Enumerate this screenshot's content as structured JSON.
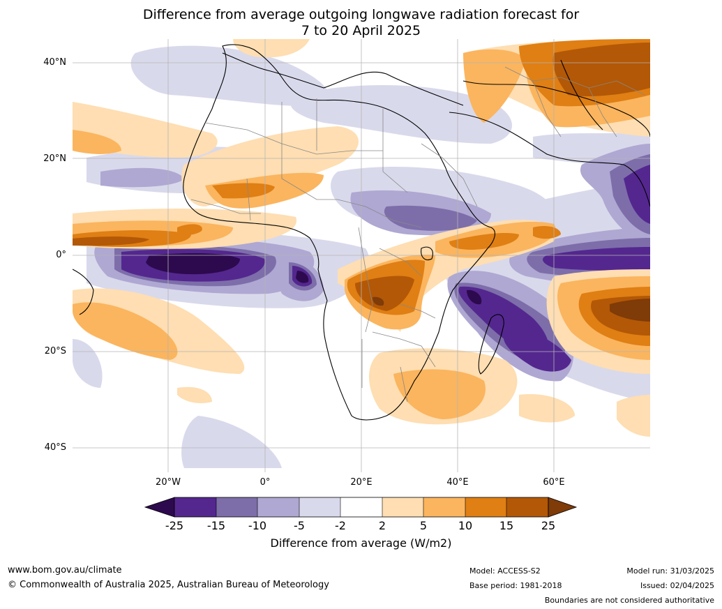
{
  "title_line1": "Difference from average outgoing longwave radiation forecast for",
  "title_line2": "7 to 20 April 2025",
  "lat_labels": [
    "40°N",
    "20°N",
    "0°",
    "20°S",
    "40°S"
  ],
  "lon_labels": [
    "20°W",
    "0°",
    "20°E",
    "40°E",
    "60°E"
  ],
  "colorbar": {
    "ticks": [
      "-25",
      "-15",
      "-10",
      "-5",
      "-2",
      "2",
      "5",
      "10",
      "15",
      "25"
    ],
    "colors": [
      "#2d0a4e",
      "#54278f",
      "#7d6eaa",
      "#afa8d2",
      "#d9d9ec",
      "#ffffff",
      "#fedeb2",
      "#fbb55e",
      "#df7f14",
      "#b35806",
      "#7f3b08"
    ],
    "label": "Difference from average (W/m2)"
  },
  "footer": {
    "url": "www.bom.gov.au/climate",
    "copyright": "© Commonwealth of Australia 2025, Australian Bureau of Meteorology",
    "model": "Model: ACCESS-S2",
    "base_period": "Base period: 1981-2018",
    "model_run": "Model run: 31/03/2025",
    "issued": "Issued: 02/04/2025",
    "disclaimer": "Boundaries are not considered authoritative"
  }
}
